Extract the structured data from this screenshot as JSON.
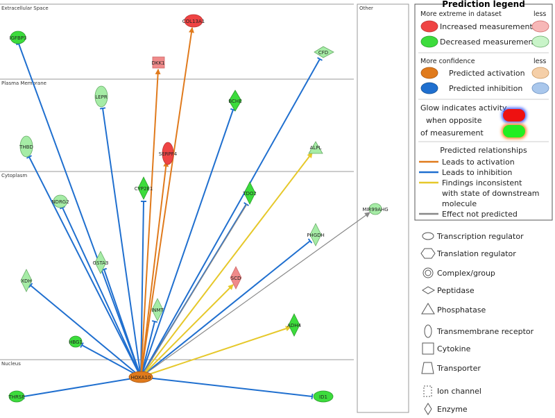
{
  "compartments": {
    "extracellular": "Extracellular Space",
    "plasma_membrane": "Plasma Membrane",
    "cytoplasm": "Cytoplasm",
    "nucleus": "Nucleus",
    "other": "Other"
  },
  "nodes": {
    "col": "COL13A1",
    "igfbp3": "IGFBP3",
    "cfd": "CFD",
    "dkk1": "DKK1",
    "lepr": "LEPR",
    "bche": "BCHE",
    "thbd": "THBD",
    "serp": "SERPF4",
    "alpl": "ALPL",
    "cyp": "CYP2E1",
    "tdo2": "TDO2",
    "ndrg2": "NDRG2",
    "mir": "MIR99AHG",
    "phgdh": "PHGDH",
    "gsta3": "GSTA3",
    "xdh": "XDH",
    "scd": "SCD",
    "inmt": "INMT",
    "adh4": "ADH4",
    "hbg1": "HBG1",
    "hoxa": "HOXA10",
    "thrsp": "THRSP",
    "id1": "ID1"
  },
  "legend": {
    "title": "Prediction legend",
    "more_extreme": "More extreme in dataset",
    "less1": "less",
    "increased": "Increased measurement",
    "decreased": "Decreased measurement",
    "more_confidence": "More confidence",
    "less2": "less",
    "pred_activation": "Predicted activation",
    "pred_inhibition": "Predicted inhibition",
    "glow1": "Glow indicates activity",
    "glow2": "when opposite",
    "glow3": "of measurement",
    "rel_title": "Predicted relationships",
    "leads_activation": "Leads to activation",
    "leads_inhibition": "Leads to inhibition",
    "findings1": "Findings inconsistent",
    "findings2": "with state of downstream",
    "findings3": "molecule",
    "effect_not": "Effect not predicted"
  },
  "shape_legend": {
    "transcription_regulator": "Transcription regulator",
    "translation_regulator": "Translation regulator",
    "complex": "Complex/group",
    "peptidase": "Peptidase",
    "phosphatase": "Phosphatase",
    "transmembrane": "Transmembrane receptor",
    "cytokine": "Cytokine",
    "transporter": "Transporter",
    "ion_channel": "Ion channel",
    "enzyme": "Enzyme"
  },
  "colors": {
    "increased": "#ef4444",
    "decreased": "#3cdc3c",
    "light_green": "#a6eca6",
    "light_red": "#f08a8a",
    "activation": "#e07a1c",
    "inhibition": "#1f6fcf",
    "inconsistent": "#e6c82a",
    "not_predicted": "#888888"
  }
}
